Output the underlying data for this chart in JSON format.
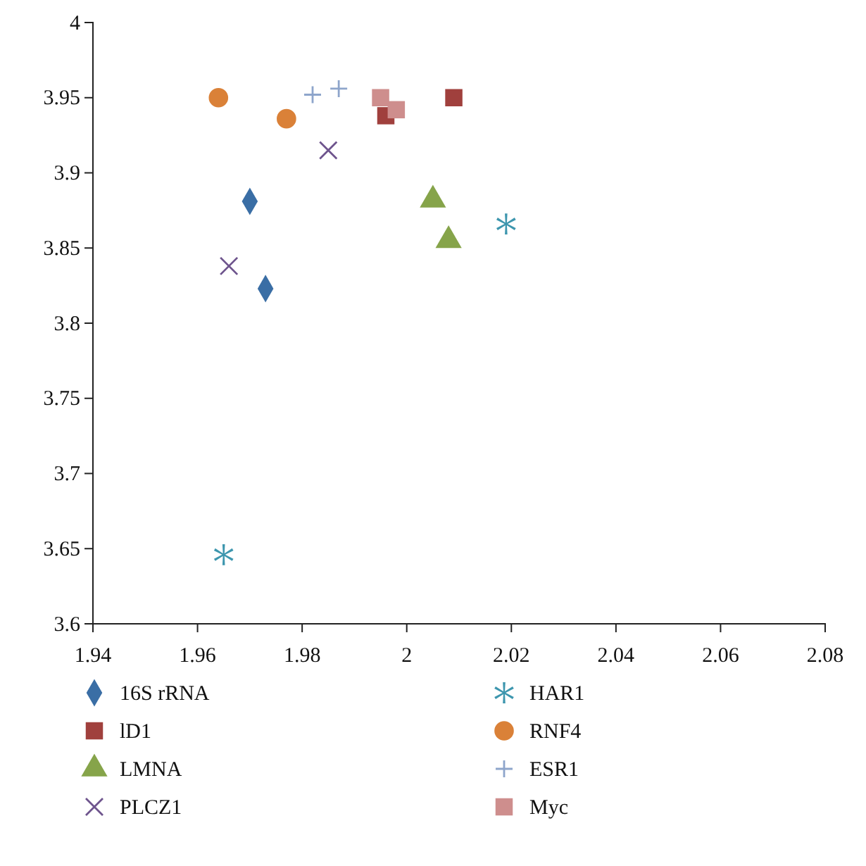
{
  "chart_data": {
    "type": "scatter",
    "xlim": [
      1.94,
      2.08
    ],
    "xticks": [
      1.94,
      1.96,
      1.98,
      2,
      2.02,
      2.04,
      2.06,
      2.08
    ],
    "ylim": [
      3.6,
      4
    ],
    "yticks": [
      3.6,
      3.65,
      3.7,
      3.75,
      3.8,
      3.85,
      3.9,
      3.95,
      4
    ],
    "grid": false,
    "legend": "bottom",
    "series": [
      {
        "name": "16S rRNA",
        "color": "#3a6ea5",
        "marker": "diamond",
        "x": [
          1.97,
          1.973
        ],
        "values": [
          3.881,
          3.823
        ]
      },
      {
        "name": "lD1",
        "color": "#a0403d",
        "marker": "square",
        "x": [
          2.009,
          1.996
        ],
        "values": [
          3.95,
          3.938
        ]
      },
      {
        "name": "LMNA",
        "color": "#86a44a",
        "marker": "triangle",
        "x": [
          2.005,
          2.008
        ],
        "values": [
          3.882,
          3.855
        ]
      },
      {
        "name": "PLCZ1",
        "color": "#6e548d",
        "marker": "x",
        "x": [
          1.985,
          1.966
        ],
        "values": [
          3.915,
          3.838
        ]
      },
      {
        "name": "HAR1",
        "color": "#3d96ae",
        "marker": "star",
        "x": [
          2.019,
          1.965
        ],
        "values": [
          3.866,
          3.646
        ]
      },
      {
        "name": "RNF4",
        "color": "#da8138",
        "marker": "circle",
        "x": [
          1.964,
          1.977
        ],
        "values": [
          3.95,
          3.936
        ]
      },
      {
        "name": "ESR1",
        "color": "#8ea5cb",
        "marker": "cross",
        "x": [
          1.982,
          1.987
        ],
        "values": [
          3.952,
          3.956
        ]
      },
      {
        "name": "Myc",
        "color": "#ce8e8d",
        "marker": "square",
        "x": [
          1.995,
          1.998
        ],
        "values": [
          3.95,
          3.942
        ]
      }
    ]
  }
}
